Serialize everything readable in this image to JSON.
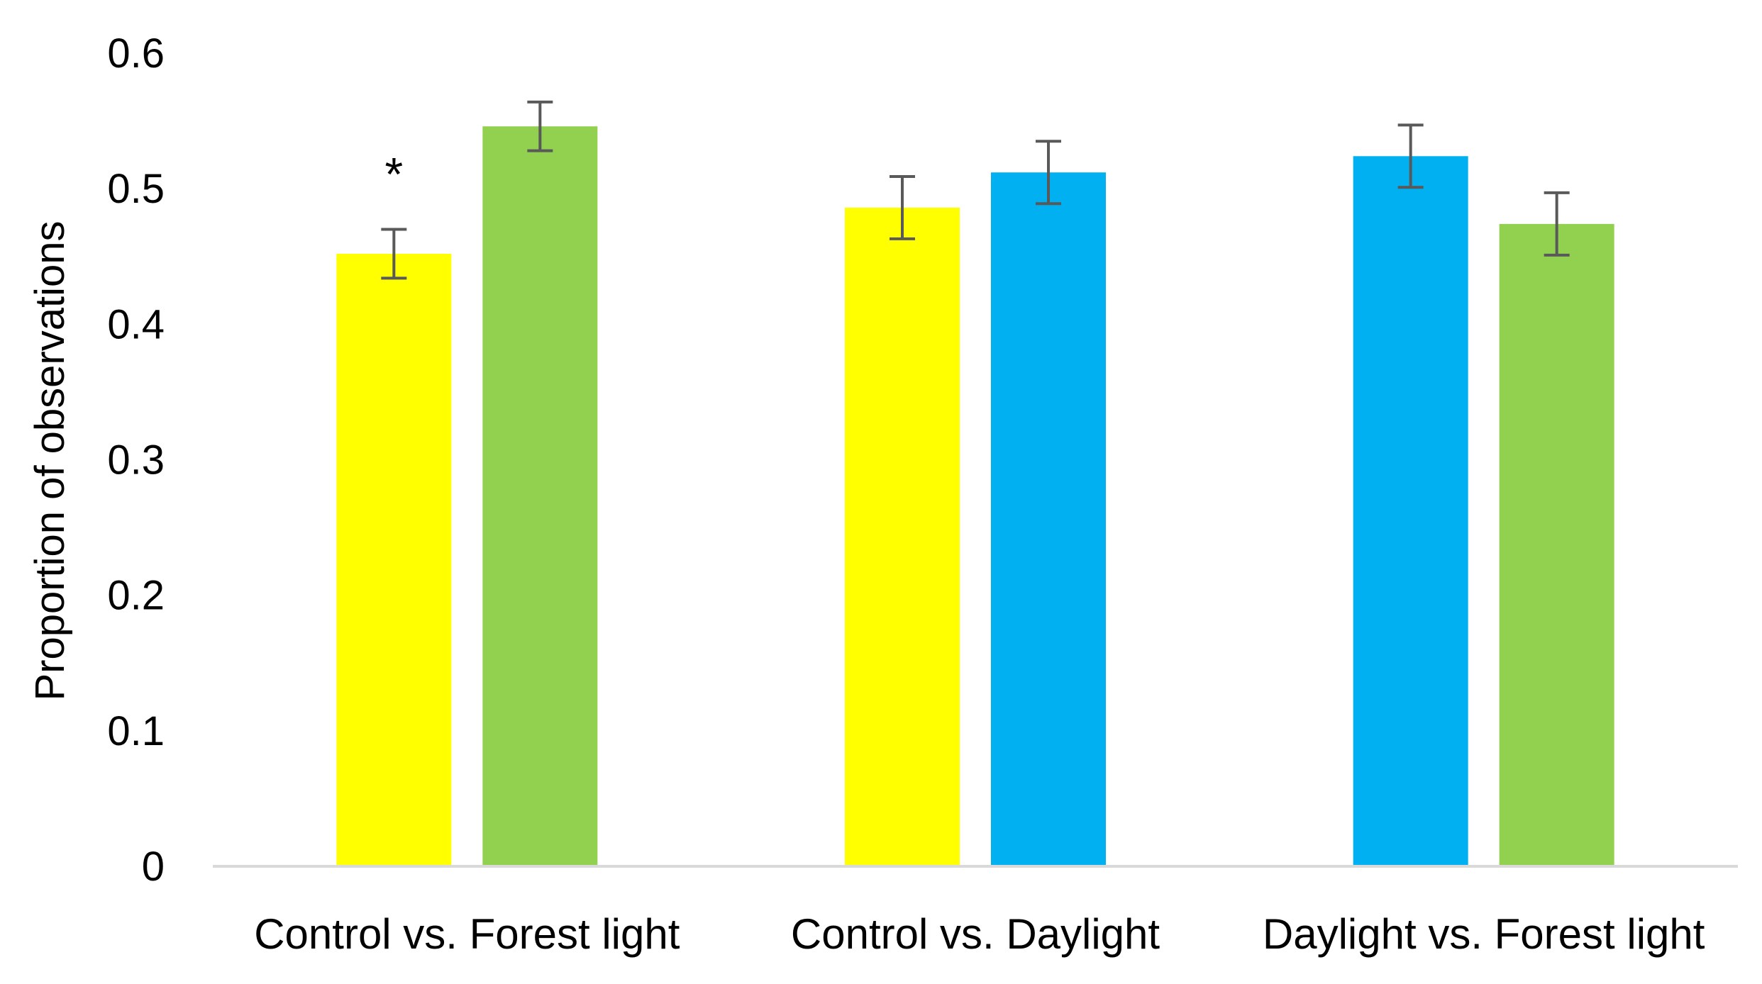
{
  "chart_data": {
    "type": "bar",
    "title": "",
    "xlabel": "",
    "ylabel": "Proportion  of observations",
    "ylim": [
      0,
      0.6
    ],
    "yticks": [
      "0",
      "0.1",
      "0.2",
      "0.3",
      "0.4",
      "0.5",
      "0.6"
    ],
    "grid": false,
    "legend": "none",
    "groups": [
      {
        "label": "Control vs. Forest light",
        "bars": [
          {
            "value": 0.452,
            "error": 0.018,
            "color": "#FFFF00"
          },
          {
            "value": 0.546,
            "error": 0.018,
            "color": "#92D050"
          }
        ],
        "annotation": "*"
      },
      {
        "label": "Control vs. Daylight",
        "bars": [
          {
            "value": 0.486,
            "error": 0.023,
            "color": "#FFFF00"
          },
          {
            "value": 0.512,
            "error": 0.023,
            "color": "#00B0F0"
          }
        ],
        "annotation": ""
      },
      {
        "label": "Daylight vs. Forest light",
        "bars": [
          {
            "value": 0.524,
            "error": 0.023,
            "color": "#00B0F0"
          },
          {
            "value": 0.474,
            "error": 0.023,
            "color": "#92D050"
          }
        ],
        "annotation": ""
      }
    ],
    "error_bar_color": "#595959",
    "axis_color": "#D9D9D9"
  }
}
